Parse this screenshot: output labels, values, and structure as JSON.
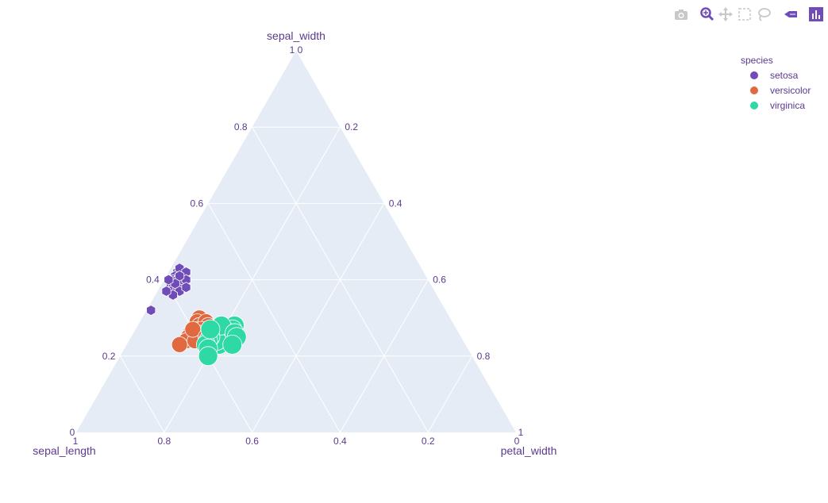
{
  "chart_data": {
    "type": "scatter",
    "subtype": "ternary",
    "axes": {
      "a": {
        "title": "sepal_width",
        "ticks": [
          "0.2",
          "0.4",
          "0.6",
          "0.8",
          "1"
        ]
      },
      "b": {
        "title": "sepal_length",
        "ticks": [
          "0.2",
          "0.4",
          "0.6",
          "0.8",
          "1"
        ]
      },
      "c": {
        "title": "petal_width",
        "ticks": [
          "0.2",
          "0.4",
          "0.6",
          "0.8",
          "1"
        ]
      }
    },
    "corner_labels": {
      "top": "1 0",
      "left": "0",
      "left_below": "1",
      "right": "1",
      "right_below": "0"
    },
    "legend_title": "species",
    "series": [
      {
        "name": "setosa",
        "color": "#6f4cb8",
        "marker": "hexagon",
        "points": [
          {
            "a": 0.42,
            "b": 0.56,
            "c": 0.02
          },
          {
            "a": 0.43,
            "b": 0.55,
            "c": 0.02
          },
          {
            "a": 0.41,
            "b": 0.57,
            "c": 0.02
          },
          {
            "a": 0.4,
            "b": 0.58,
            "c": 0.02
          },
          {
            "a": 0.39,
            "b": 0.59,
            "c": 0.02
          },
          {
            "a": 0.41,
            "b": 0.56,
            "c": 0.03
          },
          {
            "a": 0.4,
            "b": 0.57,
            "c": 0.03
          },
          {
            "a": 0.38,
            "b": 0.59,
            "c": 0.03
          },
          {
            "a": 0.37,
            "b": 0.6,
            "c": 0.03
          },
          {
            "a": 0.42,
            "b": 0.54,
            "c": 0.04
          },
          {
            "a": 0.39,
            "b": 0.57,
            "c": 0.04
          },
          {
            "a": 0.38,
            "b": 0.58,
            "c": 0.04
          },
          {
            "a": 0.37,
            "b": 0.58,
            "c": 0.05
          },
          {
            "a": 0.4,
            "b": 0.55,
            "c": 0.05
          },
          {
            "a": 0.36,
            "b": 0.6,
            "c": 0.04
          },
          {
            "a": 0.38,
            "b": 0.56,
            "c": 0.06
          },
          {
            "a": 0.41,
            "b": 0.56,
            "c": 0.03
          },
          {
            "a": 0.39,
            "b": 0.58,
            "c": 0.03
          },
          {
            "a": 0.32,
            "b": 0.67,
            "c": 0.01
          },
          {
            "a": 0.37,
            "b": 0.61,
            "c": 0.02
          },
          {
            "a": 0.4,
            "b": 0.59,
            "c": 0.01
          }
        ]
      },
      {
        "name": "versicolor",
        "color": "#e0693f",
        "marker": "circle",
        "points": [
          {
            "a": 0.3,
            "b": 0.57,
            "c": 0.13
          },
          {
            "a": 0.29,
            "b": 0.58,
            "c": 0.13
          },
          {
            "a": 0.28,
            "b": 0.58,
            "c": 0.14
          },
          {
            "a": 0.27,
            "b": 0.59,
            "c": 0.14
          },
          {
            "a": 0.26,
            "b": 0.61,
            "c": 0.13
          },
          {
            "a": 0.25,
            "b": 0.62,
            "c": 0.13
          },
          {
            "a": 0.24,
            "b": 0.63,
            "c": 0.13
          },
          {
            "a": 0.23,
            "b": 0.65,
            "c": 0.12
          },
          {
            "a": 0.29,
            "b": 0.56,
            "c": 0.15
          },
          {
            "a": 0.28,
            "b": 0.56,
            "c": 0.16
          },
          {
            "a": 0.27,
            "b": 0.58,
            "c": 0.15
          },
          {
            "a": 0.26,
            "b": 0.59,
            "c": 0.15
          },
          {
            "a": 0.25,
            "b": 0.6,
            "c": 0.15
          },
          {
            "a": 0.24,
            "b": 0.61,
            "c": 0.15
          },
          {
            "a": 0.27,
            "b": 0.6,
            "c": 0.13
          },
          {
            "a": 0.26,
            "b": 0.57,
            "c": 0.17
          },
          {
            "a": 0.25,
            "b": 0.58,
            "c": 0.17
          }
        ]
      },
      {
        "name": "virginica",
        "color": "#2fd9a5",
        "marker": "circle",
        "points": [
          {
            "a": 0.28,
            "b": 0.5,
            "c": 0.22
          },
          {
            "a": 0.27,
            "b": 0.51,
            "c": 0.22
          },
          {
            "a": 0.26,
            "b": 0.52,
            "c": 0.22
          },
          {
            "a": 0.25,
            "b": 0.53,
            "c": 0.22
          },
          {
            "a": 0.24,
            "b": 0.55,
            "c": 0.21
          },
          {
            "a": 0.23,
            "b": 0.56,
            "c": 0.21
          },
          {
            "a": 0.27,
            "b": 0.53,
            "c": 0.2
          },
          {
            "a": 0.26,
            "b": 0.54,
            "c": 0.2
          },
          {
            "a": 0.25,
            "b": 0.55,
            "c": 0.2
          },
          {
            "a": 0.24,
            "b": 0.56,
            "c": 0.2
          },
          {
            "a": 0.28,
            "b": 0.53,
            "c": 0.19
          },
          {
            "a": 0.25,
            "b": 0.57,
            "c": 0.18
          },
          {
            "a": 0.24,
            "b": 0.58,
            "c": 0.18
          },
          {
            "a": 0.23,
            "b": 0.59,
            "c": 0.18
          },
          {
            "a": 0.22,
            "b": 0.59,
            "c": 0.19
          },
          {
            "a": 0.26,
            "b": 0.51,
            "c": 0.23
          },
          {
            "a": 0.27,
            "b": 0.56,
            "c": 0.17
          },
          {
            "a": 0.25,
            "b": 0.51,
            "c": 0.24
          },
          {
            "a": 0.2,
            "b": 0.6,
            "c": 0.2
          },
          {
            "a": 0.23,
            "b": 0.53,
            "c": 0.24
          }
        ]
      }
    ],
    "colors": {
      "background": "#e5ecf6",
      "grid": "#ffffff",
      "text": "#5b3a8e"
    },
    "grid": true,
    "legend_position": "top-right"
  },
  "modebar": [
    "camera-icon",
    "zoom-icon",
    "pan-icon",
    "select-box-icon",
    "lasso-icon",
    "plotly-logo-icon",
    "bar-chart-icon"
  ]
}
